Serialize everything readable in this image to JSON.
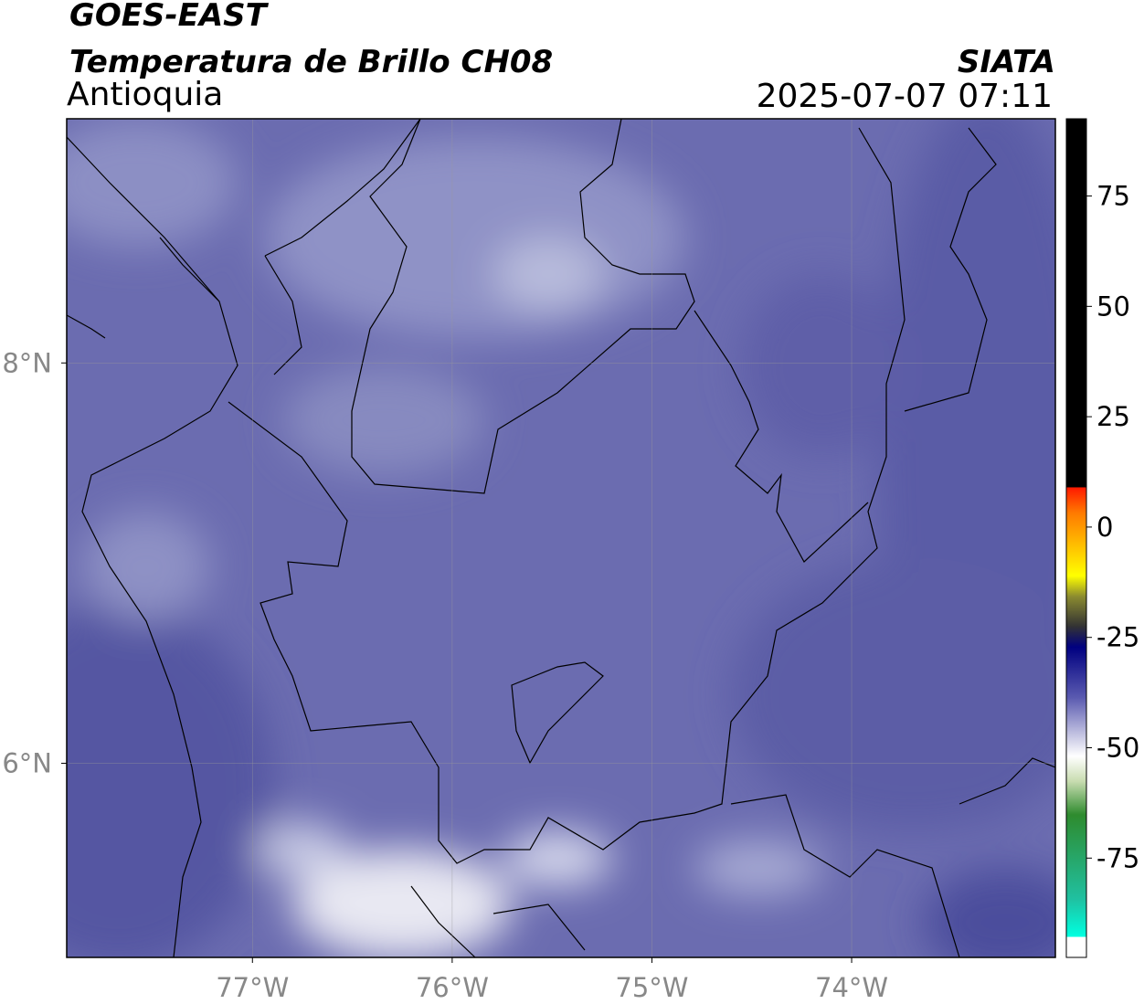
{
  "header": {
    "line1": "GOES-EAST",
    "line2": "Temperatura de Brillo CH08",
    "region": "Antioquia",
    "source": "SIATA",
    "datetime": "2025-07-07 07:11"
  },
  "map": {
    "xlim": [
      -77.93,
      -72.98
    ],
    "ylim": [
      5.03,
      9.22
    ],
    "xticks": [
      {
        "value": -77,
        "label": "77°W"
      },
      {
        "value": -76,
        "label": "76°W"
      },
      {
        "value": -75,
        "label": "75°W"
      },
      {
        "value": -74,
        "label": "74°W"
      }
    ],
    "yticks": [
      {
        "value": 6,
        "label": "6°N"
      },
      {
        "value": 8,
        "label": "8°N"
      }
    ],
    "grid": true
  },
  "colorbar": {
    "lim": [
      -97.5,
      92.5
    ],
    "ticks": [
      75,
      50,
      25,
      0,
      -25,
      -50,
      -75
    ]
  }
}
